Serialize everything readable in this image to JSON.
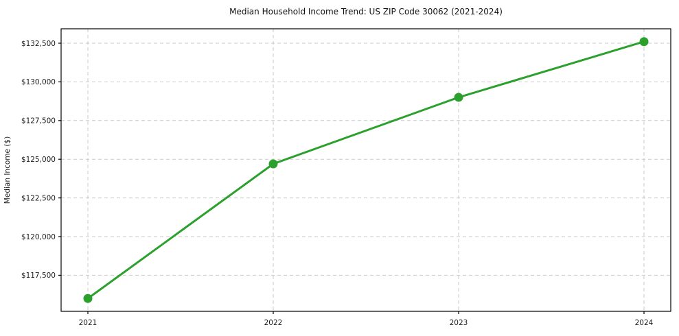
{
  "page": {
    "background": "#ffffff"
  },
  "chart_data": {
    "type": "line",
    "title": "Median Household Income Trend: US ZIP Code 30062 (2021-2024)",
    "xlabel": "",
    "ylabel": "Median Income ($)",
    "categories": [
      "2021",
      "2022",
      "2023",
      "2024"
    ],
    "series": [
      {
        "name": "Median Household Income",
        "values": [
          116000,
          124700,
          129000,
          132600
        ],
        "color": "#2ca02c",
        "marker": "circle",
        "marker_radius": 6.5,
        "line_width": 3
      }
    ],
    "y_ticks": [
      {
        "value": 117500,
        "label": "$117,500"
      },
      {
        "value": 120000,
        "label": "$120,000"
      },
      {
        "value": 122500,
        "label": "$122,500"
      },
      {
        "value": 125000,
        "label": "$125,000"
      },
      {
        "value": 127500,
        "label": "$127,500"
      },
      {
        "value": 130000,
        "label": "$130,000"
      },
      {
        "value": 132500,
        "label": "$132,500"
      }
    ],
    "ylim": [
      115170,
      133430
    ],
    "grid": true,
    "grid_style": "dashed",
    "grid_color": "#c9c9c9",
    "axis_color": "#000000",
    "legend": "none"
  }
}
